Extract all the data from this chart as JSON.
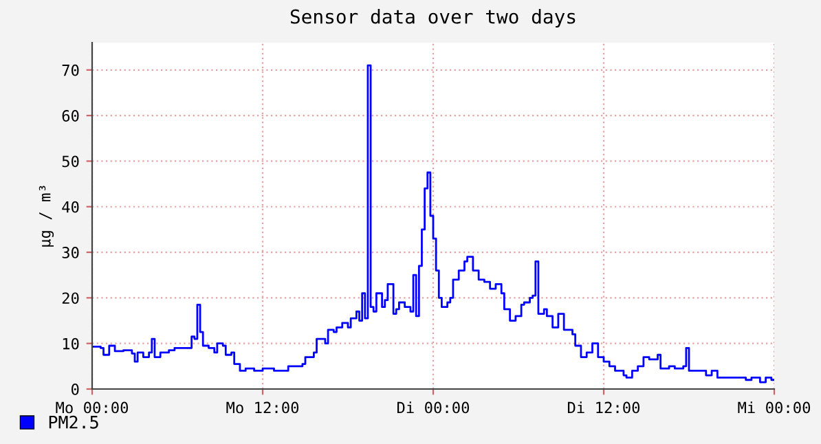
{
  "chart_data": {
    "type": "step",
    "title": "Sensor data over two days",
    "ylabel": "µg / m³",
    "categories": [
      "Mo 00:00",
      null,
      null,
      null,
      null,
      null,
      null,
      null,
      null,
      null,
      null,
      null,
      null,
      null,
      null,
      null,
      null,
      null,
      null,
      null,
      null,
      null,
      null,
      null,
      null,
      null,
      null,
      null,
      null,
      null,
      null,
      null,
      null,
      null,
      null,
      null,
      null,
      null,
      null,
      null,
      null,
      null,
      null,
      null,
      null,
      null,
      null,
      null,
      null,
      null,
      null,
      null,
      null,
      null,
      null,
      null,
      null,
      null,
      null,
      null,
      "Mo 12:00",
      null,
      null,
      null,
      null,
      null,
      null,
      null,
      null,
      null,
      null,
      null,
      null,
      null,
      null,
      null,
      null,
      null,
      null,
      null,
      null,
      null,
      null,
      null,
      null,
      null,
      null,
      null,
      null,
      null,
      null,
      null,
      null,
      null,
      null,
      null,
      null,
      null,
      null,
      null,
      null,
      null,
      null,
      null,
      null,
      null,
      null,
      null,
      null,
      null,
      null,
      null,
      null,
      null,
      null,
      null,
      null,
      null,
      null,
      null,
      "Di 00:00",
      null,
      null,
      null,
      null,
      null,
      null,
      null,
      null,
      null,
      null,
      null,
      null,
      null,
      null,
      null,
      null,
      null,
      null,
      null,
      null,
      null,
      null,
      null,
      null,
      null,
      null,
      null,
      null,
      null,
      null,
      null,
      null,
      null,
      null,
      null,
      null,
      null,
      null,
      null,
      null,
      null,
      null,
      null,
      null,
      null,
      null,
      null,
      null,
      null,
      null,
      null,
      null,
      null,
      null,
      null,
      null,
      null,
      null,
      null,
      "Di 12:00",
      null,
      null,
      null,
      null,
      null,
      null,
      null,
      null,
      null,
      null,
      null,
      null,
      null,
      null,
      null,
      null,
      null,
      null,
      null,
      null,
      null,
      null,
      null,
      null,
      null,
      null,
      null,
      null,
      null,
      null,
      null,
      null,
      null,
      null,
      null,
      null,
      null,
      null,
      null,
      null,
      null,
      null,
      null,
      null,
      null,
      null,
      null,
      null,
      null,
      null,
      null,
      null,
      null,
      null,
      null,
      null,
      null,
      null,
      null,
      "Mi 00:00"
    ],
    "ylim": [
      0,
      76
    ],
    "yticks": [
      0,
      10,
      20,
      30,
      40,
      50,
      60,
      70
    ],
    "grid": true,
    "legend": "bottom left",
    "series": [
      {
        "name": "PM2.5",
        "color": "#0000ff",
        "values": [
          9.3,
          9.3,
          9.3,
          9.0,
          7.5,
          7.5,
          9.5,
          9.5,
          8.3,
          8.3,
          8.3,
          8.5,
          8.5,
          8.5,
          7.8,
          6.0,
          8.0,
          8.0,
          7.0,
          7.0,
          8.0,
          11.0,
          7.0,
          7.0,
          8.0,
          8.0,
          8.0,
          8.5,
          8.5,
          9.0,
          9.0,
          9.0,
          9.0,
          9.0,
          9.0,
          11.5,
          11.0,
          18.5,
          12.5,
          9.5,
          9.5,
          9.0,
          9.0,
          8.0,
          10.0,
          10.0,
          9.5,
          7.5,
          7.5,
          8.0,
          5.5,
          5.5,
          4.0,
          4.0,
          4.5,
          4.5,
          4.5,
          4.0,
          4.0,
          4.0,
          4.5,
          4.5,
          4.5,
          4.5,
          4.0,
          4.0,
          4.0,
          4.0,
          4.0,
          5.0,
          5.0,
          5.0,
          5.0,
          5.0,
          5.5,
          7.0,
          7.0,
          7.0,
          8.0,
          11.0,
          11.0,
          11.0,
          10.0,
          13.0,
          13.0,
          12.5,
          13.5,
          13.5,
          14.5,
          14.5,
          13.5,
          15.5,
          15.5,
          17.0,
          15.0,
          21.0,
          15.5,
          71.0,
          18.0,
          17.0,
          21.0,
          21.0,
          18.0,
          19.5,
          23.0,
          23.0,
          16.5,
          17.5,
          19.0,
          19.0,
          18.0,
          18.0,
          17.0,
          25.0,
          16.0,
          27.0,
          35.0,
          44.0,
          47.5,
          38.0,
          33.0,
          26.0,
          20.0,
          18.0,
          18.0,
          19.0,
          20.0,
          24.0,
          24.0,
          26.0,
          26.0,
          28.0,
          29.0,
          29.0,
          26.0,
          26.0,
          24.0,
          24.0,
          23.5,
          23.5,
          22.0,
          22.0,
          23.0,
          23.0,
          21.0,
          17.5,
          17.5,
          15.0,
          15.0,
          16.0,
          16.0,
          18.5,
          19.0,
          19.0,
          20.0,
          20.5,
          28.0,
          16.5,
          16.5,
          17.5,
          16.0,
          16.0,
          13.5,
          13.5,
          16.5,
          16.5,
          13.0,
          13.0,
          13.0,
          12.0,
          9.5,
          9.5,
          7.0,
          7.0,
          8.0,
          8.0,
          10.0,
          10.0,
          7.0,
          7.0,
          6.0,
          6.0,
          5.0,
          5.0,
          4.0,
          4.0,
          4.0,
          3.0,
          2.5,
          2.5,
          4.0,
          4.0,
          5.0,
          5.0,
          7.0,
          7.0,
          6.5,
          6.5,
          6.5,
          7.5,
          4.5,
          4.5,
          4.5,
          5.0,
          5.0,
          4.5,
          4.5,
          4.5,
          5.0,
          9.0,
          4.0,
          4.0,
          4.0,
          4.0,
          4.0,
          4.0,
          3.0,
          3.0,
          4.0,
          4.0,
          2.5,
          2.5,
          2.5,
          2.5,
          2.5,
          2.5,
          2.5,
          2.5,
          2.5,
          2.5,
          2.0,
          2.0,
          2.5,
          2.5,
          2.5,
          1.5,
          1.5,
          2.5,
          2.5,
          2.0,
          null
        ]
      }
    ]
  }
}
